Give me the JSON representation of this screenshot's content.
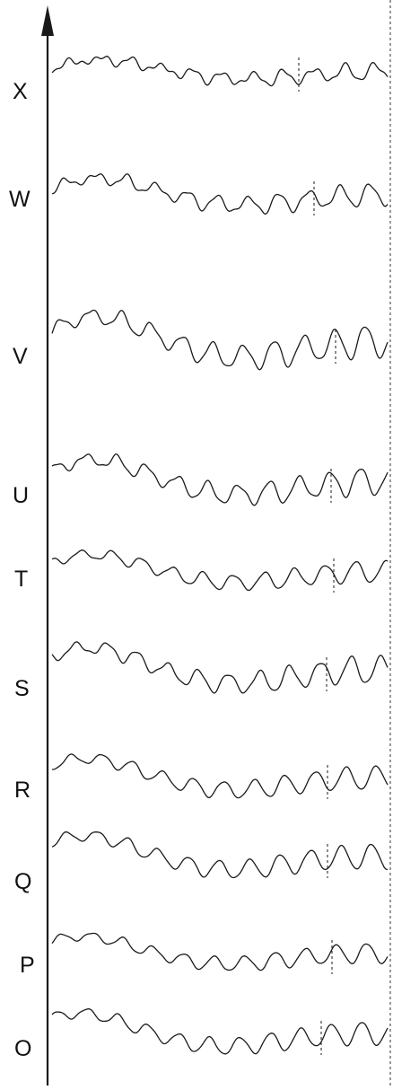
{
  "colors": {
    "ink": "#1a1a1a",
    "paper": "#ffffff"
  },
  "rows": [
    {
      "label": "X"
    },
    {
      "label": "W"
    },
    {
      "label": "V"
    },
    {
      "label": "U"
    },
    {
      "label": "T"
    },
    {
      "label": "S"
    },
    {
      "label": "R"
    },
    {
      "label": "Q"
    },
    {
      "label": "P"
    },
    {
      "label": "O"
    }
  ]
}
